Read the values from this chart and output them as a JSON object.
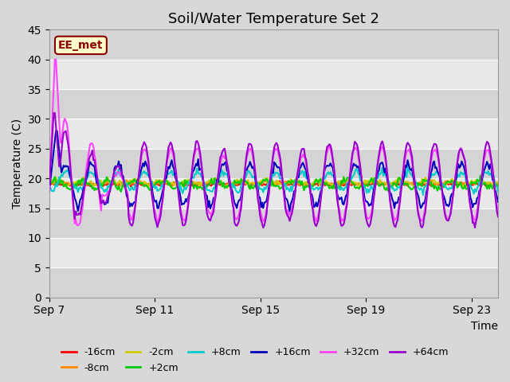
{
  "title": "Soil/Water Temperature Set 2",
  "xlabel": "Time",
  "ylabel": "Temperature (C)",
  "ylim": [
    0,
    45
  ],
  "yticks": [
    0,
    5,
    10,
    15,
    20,
    25,
    30,
    35,
    40,
    45
  ],
  "xtick_labels": [
    "Sep 7",
    "Sep 11",
    "Sep 15",
    "Sep 19",
    "Sep 23"
  ],
  "annotation_text": "EE_met",
  "colors": {
    "-16cm": "#ff0000",
    "-8cm": "#ff8800",
    "-2cm": "#cccc00",
    "+2cm": "#00cc00",
    "+8cm": "#00cccc",
    "+16cm": "#0000bb",
    "+32cm": "#ff44ff",
    "+64cm": "#9900cc"
  },
  "title_fontsize": 13,
  "label_fontsize": 10,
  "tick_fontsize": 10
}
